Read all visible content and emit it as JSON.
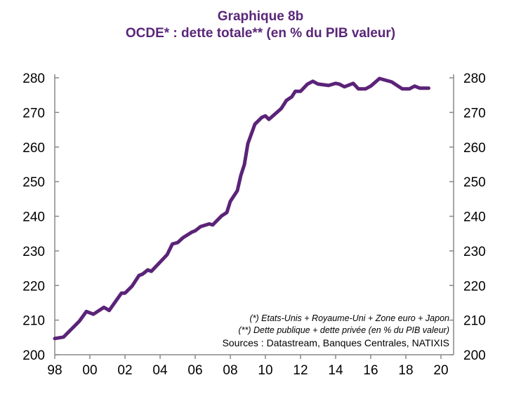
{
  "chart_data": {
    "type": "line",
    "title": "Graphique 8b",
    "subtitle": "OCDE* : dette totale** (en % du PIB valeur)",
    "xlabel": "",
    "ylabel": "",
    "ylim": [
      200,
      280
    ],
    "xlim": [
      1998,
      2020.7
    ],
    "yticks": [
      "200",
      "210",
      "220",
      "230",
      "240",
      "250",
      "260",
      "270",
      "280"
    ],
    "xticks": [
      "98",
      "00",
      "02",
      "04",
      "06",
      "08",
      "10",
      "12",
      "14",
      "16",
      "18",
      "20"
    ],
    "grid": false,
    "line_color": "#5b2378",
    "series": [
      {
        "name": "Dette totale OCDE (% PIB)",
        "x": [
          1998.0,
          1998.5,
          1999.4,
          1999.8,
          2000.2,
          2000.8,
          2001.1,
          2001.8,
          2002.0,
          2002.4,
          2002.8,
          2003.0,
          2003.3,
          2003.5,
          2004.4,
          2004.7,
          2005.0,
          2005.3,
          2005.8,
          2006.0,
          2006.3,
          2006.8,
          2007.0,
          2007.5,
          2007.8,
          2008.0,
          2008.4,
          2008.6,
          2008.8,
          2009.0,
          2009.4,
          2009.8,
          2010.0,
          2010.2,
          2010.9,
          2011.2,
          2011.5,
          2011.7,
          2012.0,
          2012.4,
          2012.7,
          2013.0,
          2013.6,
          2014.0,
          2014.2,
          2014.5,
          2015.0,
          2015.3,
          2015.7,
          2016.0,
          2016.5,
          2017.2,
          2017.8,
          2018.2,
          2018.5,
          2018.8,
          2019.3
        ],
        "y": [
          204.7,
          205.1,
          209.7,
          212.5,
          211.7,
          213.7,
          212.8,
          217.8,
          217.8,
          219.8,
          222.9,
          223.3,
          224.5,
          224.1,
          228.9,
          232.0,
          232.4,
          233.8,
          235.4,
          235.8,
          237.0,
          237.8,
          237.5,
          240.1,
          241.1,
          244.3,
          247.4,
          251.8,
          254.9,
          261.0,
          266.6,
          268.6,
          269.0,
          268.0,
          271.1,
          273.5,
          274.5,
          276.1,
          276.1,
          278.2,
          279.0,
          278.2,
          277.8,
          278.4,
          278.2,
          277.4,
          278.4,
          276.8,
          276.8,
          277.6,
          279.8,
          278.8,
          276.8,
          276.8,
          277.6,
          277.0,
          277.0
        ]
      }
    ]
  },
  "notes": {
    "n1": "(*) Etats-Unis + Royaume-Uni + Zone euro + Japon",
    "n2": "(**) Dette publique + dette privée (en % du PIB valeur)",
    "n3": "Sources  : Datastream,  Banques  Centrales, NATIXIS"
  }
}
